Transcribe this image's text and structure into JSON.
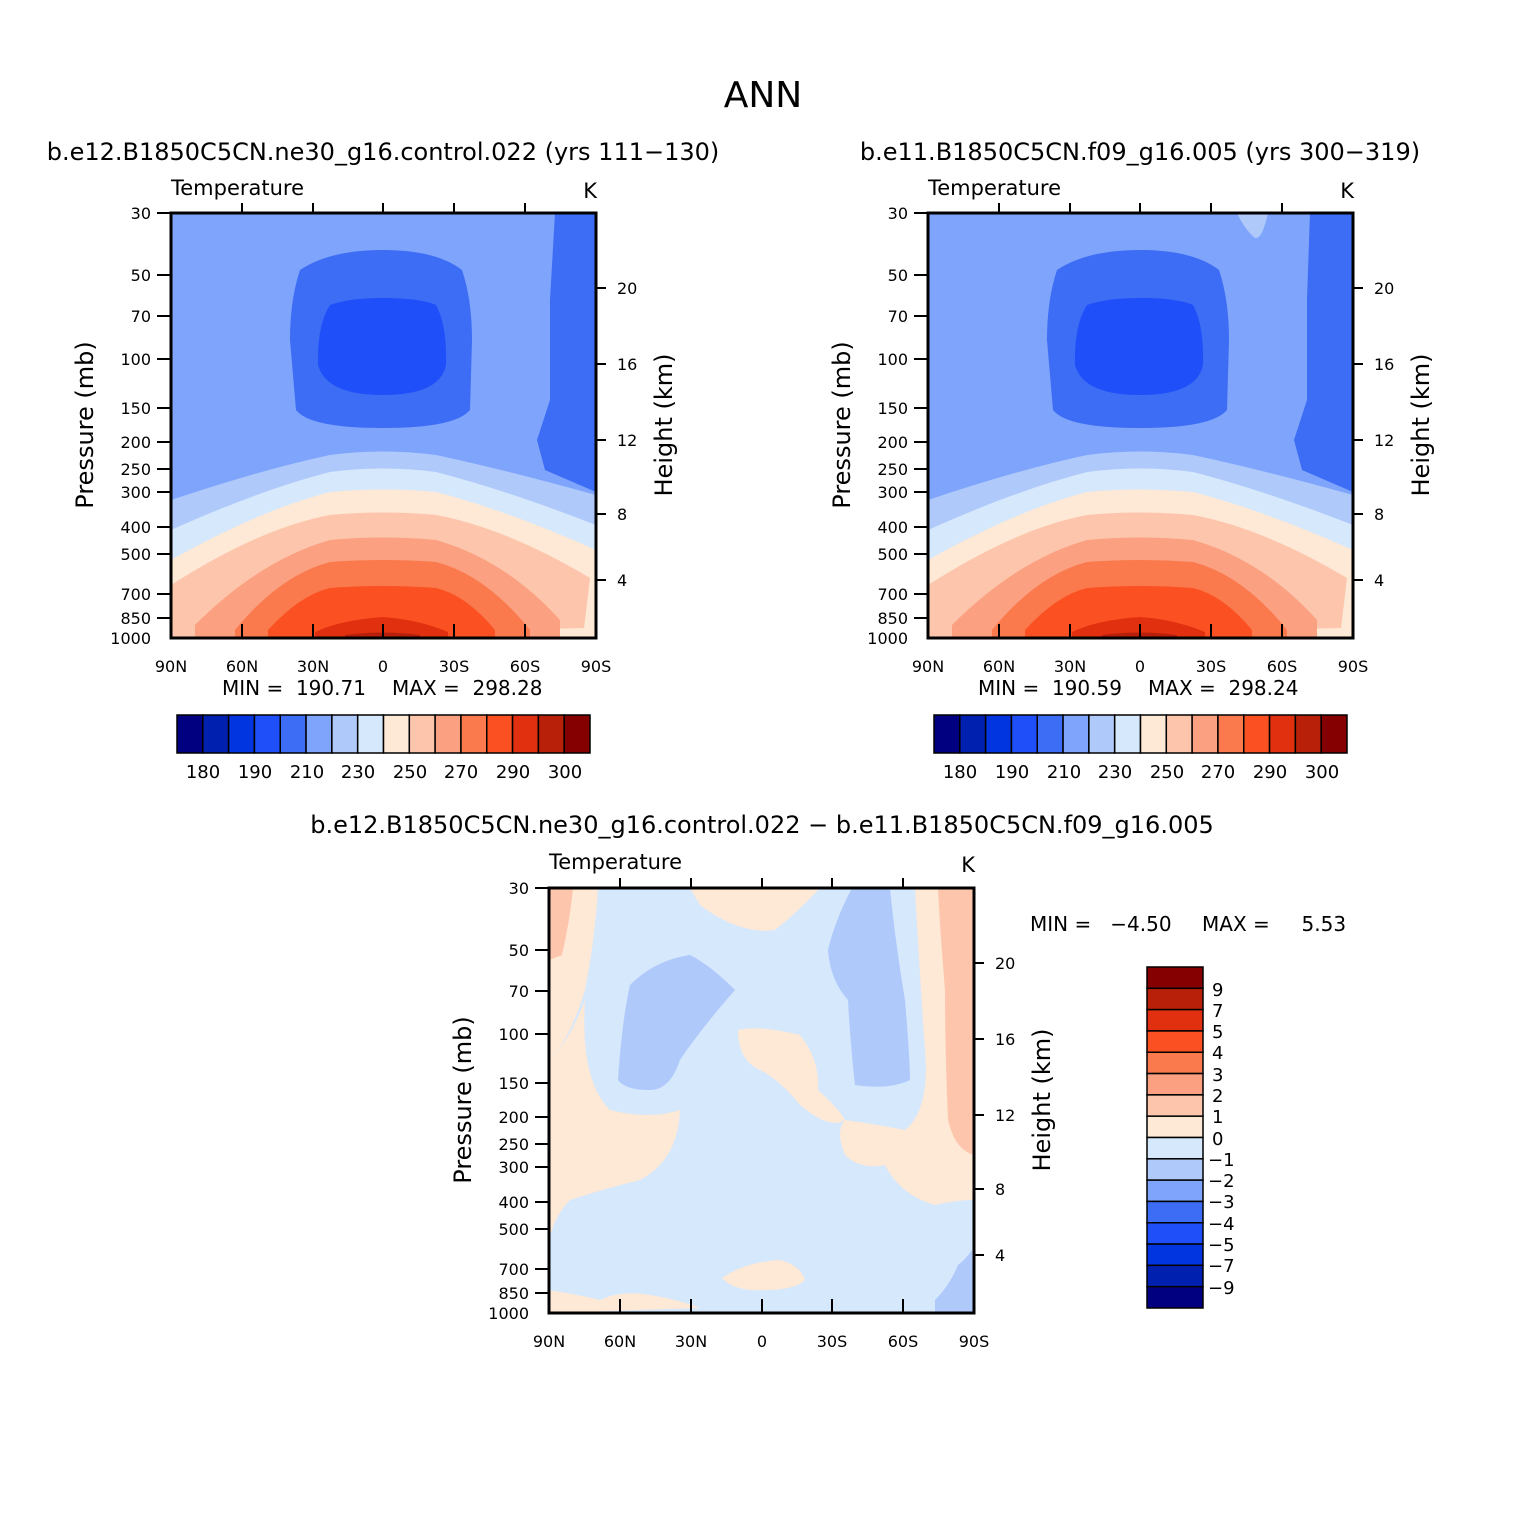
{
  "page_title": "ANN",
  "palette_temp": [
    "#000080",
    "#0020b0",
    "#0035e0",
    "#1e4ff8",
    "#3d6cf5",
    "#7ea4fb",
    "#b0c9fb",
    "#d6e8fc",
    "#fee8d6",
    "#fdc6ac",
    "#fba080",
    "#fa7a4d",
    "#fb5021",
    "#e13010",
    "#b9200a",
    "#850000"
  ],
  "palette_diff": [
    "#000080",
    "#0020b0",
    "#0035e0",
    "#1e4ff8",
    "#3d6cf5",
    "#7ea4fb",
    "#b0c9fb",
    "#d6e8fc",
    "#fee8d6",
    "#fdc6ac",
    "#fba080",
    "#fa7a4d",
    "#fb5021",
    "#e13010",
    "#b9200a",
    "#850000"
  ],
  "chart_data": [
    {
      "type": "heatmap",
      "title": "b.e12.B1850C5CN.ne30_g16.control.022 (yrs 111−130)",
      "subtitle_left": "Temperature",
      "subtitle_right": "K",
      "ylabel": "Pressure (mb)",
      "ylabel_right": "Height (km)",
      "x_ticks": [
        "90N",
        "60N",
        "30N",
        "0",
        "30S",
        "60S",
        "90S"
      ],
      "y_ticks": [
        "30",
        "50",
        "70",
        "100",
        "150",
        "200",
        "250",
        "300",
        "400",
        "500",
        "700",
        "850",
        "1000"
      ],
      "y_ticks_right": [
        "20",
        "16",
        "12",
        "8",
        "4"
      ],
      "min_label": "MIN =  190.71",
      "max_label": "MAX =  298.28",
      "colorbar_labels": [
        "180",
        "190",
        "210",
        "230",
        "250",
        "270",
        "290",
        "300"
      ]
    },
    {
      "type": "heatmap",
      "title": "b.e11.B1850C5CN.f09_g16.005 (yrs 300−319)",
      "subtitle_left": "Temperature",
      "subtitle_right": "K",
      "ylabel": "Pressure (mb)",
      "ylabel_right": "Height (km)",
      "x_ticks": [
        "90N",
        "60N",
        "30N",
        "0",
        "30S",
        "60S",
        "90S"
      ],
      "y_ticks": [
        "30",
        "50",
        "70",
        "100",
        "150",
        "200",
        "250",
        "300",
        "400",
        "500",
        "700",
        "850",
        "1000"
      ],
      "y_ticks_right": [
        "20",
        "16",
        "12",
        "8",
        "4"
      ],
      "min_label": "MIN =  190.59",
      "max_label": "MAX =  298.24",
      "colorbar_labels": [
        "180",
        "190",
        "210",
        "230",
        "250",
        "270",
        "290",
        "300"
      ]
    },
    {
      "type": "heatmap",
      "title": "b.e12.B1850C5CN.ne30_g16.control.022 − b.e11.B1850C5CN.f09_g16.005",
      "subtitle_left": "Temperature",
      "subtitle_right": "K",
      "ylabel": "Pressure (mb)",
      "ylabel_right": "Height (km)",
      "x_ticks": [
        "90N",
        "60N",
        "30N",
        "0",
        "30S",
        "60S",
        "90S"
      ],
      "y_ticks": [
        "30",
        "50",
        "70",
        "100",
        "150",
        "200",
        "250",
        "300",
        "400",
        "500",
        "700",
        "850",
        "1000"
      ],
      "y_ticks_right": [
        "20",
        "16",
        "12",
        "8",
        "4"
      ],
      "min_label": "MIN =   −4.50",
      "max_label": "MAX =     5.53",
      "colorbar_labels": [
        "9",
        "7",
        "5",
        "4",
        "3",
        "2",
        "1",
        "0",
        "−1",
        "−2",
        "−3",
        "−4",
        "−5",
        "−7",
        "−9"
      ]
    }
  ]
}
